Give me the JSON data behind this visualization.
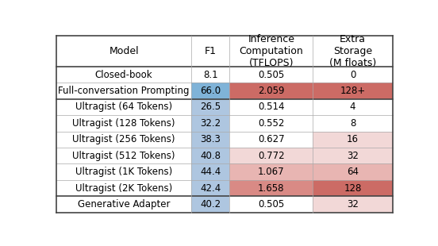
{
  "col_headers": [
    "Model",
    "F1",
    "Inference\nComputation\n(TFLOPS)",
    "Extra\nStorage\n(M floats)"
  ],
  "rows": [
    [
      "Closed-book",
      "8.1",
      "0.505",
      "0"
    ],
    [
      "Full-conversation Prompting",
      "66.0",
      "2.059",
      "128+"
    ],
    [
      "Ultragist (64 Tokens)",
      "26.5",
      "0.514",
      "4"
    ],
    [
      "Ultragist (128 Tokens)",
      "32.2",
      "0.552",
      "8"
    ],
    [
      "Ultragist (256 Tokens)",
      "38.3",
      "0.627",
      "16"
    ],
    [
      "Ultragist (512 Tokens)",
      "40.8",
      "0.772",
      "32"
    ],
    [
      "Ultragist (1K Tokens)",
      "44.4",
      "1.067",
      "64"
    ],
    [
      "Ultragist (2K Tokens)",
      "42.4",
      "1.658",
      "128"
    ],
    [
      "Generative Adapter",
      "40.2",
      "0.505",
      "32"
    ]
  ],
  "cell_colors": [
    [
      "#ffffff",
      "#ffffff",
      "#ffffff",
      "#ffffff"
    ],
    [
      "#ffffff",
      "#7fb3d8",
      "#cc6b65",
      "#cc6b65"
    ],
    [
      "#ffffff",
      "#aec6e0",
      "#ffffff",
      "#ffffff"
    ],
    [
      "#ffffff",
      "#aec6e0",
      "#ffffff",
      "#ffffff"
    ],
    [
      "#ffffff",
      "#aec6e0",
      "#ffffff",
      "#f2d8d7"
    ],
    [
      "#ffffff",
      "#aec6e0",
      "#f2d8d7",
      "#f2d8d7"
    ],
    [
      "#ffffff",
      "#aec6e0",
      "#e8b5b2",
      "#e8b5b2"
    ],
    [
      "#ffffff",
      "#aec6e0",
      "#d98a85",
      "#cc6b65"
    ],
    [
      "#ffffff",
      "#aec6e0",
      "#ffffff",
      "#f2d8d7"
    ]
  ],
  "thick_lines": [
    0,
    1,
    3,
    9,
    10
  ],
  "figsize": [
    5.52,
    3.1
  ],
  "dpi": 100,
  "font_size": 8.5,
  "bg_color": "#ffffff",
  "line_color_thick": "#444444",
  "line_color_thin": "#aaaaaa",
  "lw_thick": 1.2,
  "lw_thin": 0.5
}
